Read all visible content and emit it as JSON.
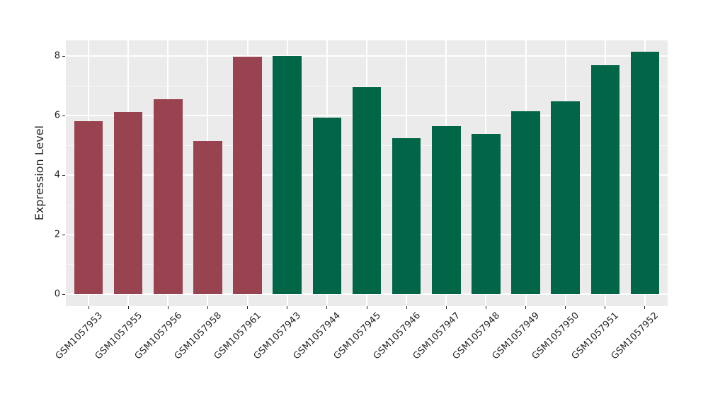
{
  "chart_data": {
    "type": "bar",
    "title": "",
    "xlabel": "",
    "ylabel": "Expression Level",
    "categories": [
      "GSM1057953",
      "GSM1057955",
      "GSM1057956",
      "GSM1057958",
      "GSM1057961",
      "GSM1057943",
      "GSM1057944",
      "GSM1057945",
      "GSM1057946",
      "GSM1057947",
      "GSM1057948",
      "GSM1057949",
      "GSM1057950",
      "GSM1057951",
      "GSM1057952"
    ],
    "values": [
      5.82,
      6.12,
      6.55,
      5.14,
      7.97,
      8.0,
      5.93,
      6.95,
      5.25,
      5.65,
      5.38,
      6.14,
      6.48,
      7.69,
      8.14
    ],
    "bar_colors": [
      "#9a4350",
      "#9a4350",
      "#9a4350",
      "#9a4350",
      "#9a4350",
      "#016647",
      "#016647",
      "#016647",
      "#016647",
      "#016647",
      "#016647",
      "#016647",
      "#016647",
      "#016647",
      "#016647"
    ],
    "yticks": [
      0,
      2,
      4,
      6,
      8
    ],
    "minor_yticks": [
      1,
      3,
      5,
      7
    ],
    "ylim": [
      -0.4,
      8.52
    ],
    "grid": "on",
    "legend": "none",
    "colors": {
      "group_red": "#9a4350",
      "group_green": "#016647",
      "plot_background": "#ebebeb",
      "gridline": "#ffffff",
      "text": "#262626"
    }
  }
}
